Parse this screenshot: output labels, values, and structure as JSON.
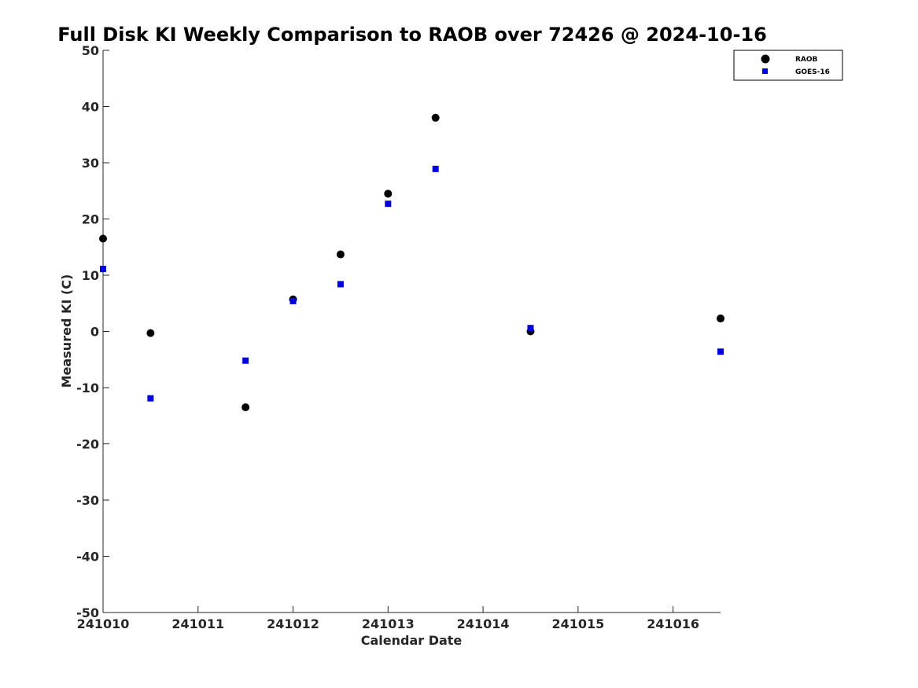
{
  "chart_data": {
    "type": "scatter",
    "title": "Full Disk KI Weekly Comparison to RAOB over 72426 @ 2024-10-16",
    "xlabel": "Calendar Date",
    "ylabel": "Measured KI (C)",
    "xlim": [
      "2024-10-10",
      "2024-10-16 12:00"
    ],
    "ylim": [
      -50,
      50
    ],
    "xticks": [
      "2024-10-10",
      "2024-10-11",
      "2024-10-12",
      "2024-10-13",
      "2024-10-14",
      "2024-10-15",
      "2024-10-16"
    ],
    "xtick_labels": [
      "241010",
      "241011",
      "241012",
      "241013",
      "241014",
      "241015",
      "241016"
    ],
    "yticks": [
      50,
      40,
      30,
      20,
      10,
      0,
      -10,
      -20,
      -30,
      -40,
      -50
    ],
    "ytick_labels": [
      "50",
      "40",
      "30",
      "20",
      "10",
      "0",
      "-10",
      "-20",
      "-30",
      "-40",
      "-50"
    ],
    "grid": false,
    "legend_position": "top-right",
    "series": [
      {
        "name": "RAOB",
        "marker": "circle",
        "color": "#000000",
        "x": [
          "2024-10-10 00:00",
          "2024-10-10 12:00",
          "2024-10-11 12:00",
          "2024-10-12 00:00",
          "2024-10-12 12:00",
          "2024-10-13 00:00",
          "2024-10-13 12:00",
          "2024-10-14 12:00",
          "2024-10-16 12:00"
        ],
        "y": [
          16.5,
          -0.3,
          -13.5,
          5.7,
          13.7,
          24.5,
          38.0,
          0.0,
          2.3
        ]
      },
      {
        "name": "GOES-16",
        "marker": "square",
        "color": "#0000dd",
        "x": [
          "2024-10-10 00:00",
          "2024-10-10 12:00",
          "2024-10-11 12:00",
          "2024-10-12 00:00",
          "2024-10-12 12:00",
          "2024-10-13 00:00",
          "2024-10-13 12:00",
          "2024-10-14 12:00",
          "2024-10-16 12:00"
        ],
        "y": [
          11.1,
          -11.9,
          -5.2,
          5.4,
          8.4,
          22.7,
          28.9,
          0.6,
          -3.6
        ]
      }
    ]
  }
}
